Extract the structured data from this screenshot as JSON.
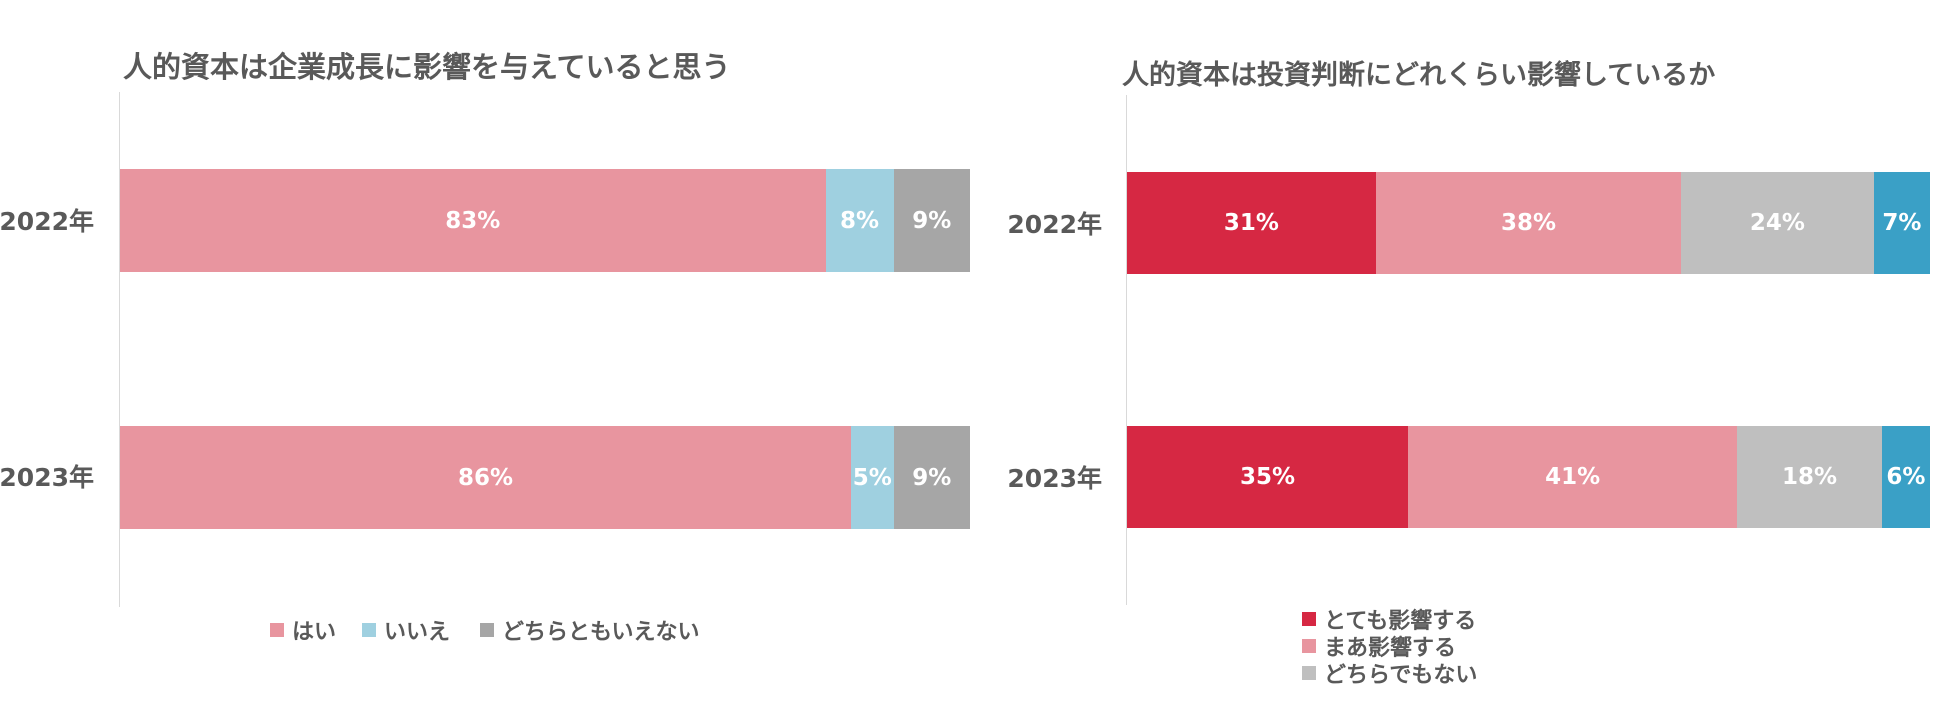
{
  "chart_data": [
    {
      "type": "bar",
      "orientation": "horizontal",
      "stacked": true,
      "percent": true,
      "title": "人的資本は企業成長に影響を与えていると思う",
      "categories": [
        "2022年",
        "2023年"
      ],
      "series": [
        {
          "name": "はい",
          "color": "#e8959f",
          "values": [
            83,
            86
          ],
          "labels": [
            "83%",
            "86%"
          ]
        },
        {
          "name": "いいえ",
          "color": "#9fd0e0",
          "values": [
            8,
            5
          ],
          "labels": [
            "8%",
            "5%"
          ]
        },
        {
          "name": "どちらともいえない",
          "color": "#a6a6a6",
          "values": [
            9,
            9
          ],
          "labels": [
            "9%",
            "9%"
          ]
        }
      ],
      "xlim": [
        0,
        100
      ],
      "legend_position": "bottom"
    },
    {
      "type": "bar",
      "orientation": "horizontal",
      "stacked": true,
      "percent": true,
      "title": "人的資本は投資判断にどれくらい影響しているか",
      "categories": [
        "2022年",
        "2023年"
      ],
      "series": [
        {
          "name": "とても影響する",
          "color": "#d62843",
          "values": [
            31,
            35
          ],
          "labels": [
            "31%",
            "35%"
          ]
        },
        {
          "name": "まあ影響する",
          "color": "#e8959f",
          "values": [
            38,
            41
          ],
          "labels": [
            "38%",
            "41%"
          ]
        },
        {
          "name": "どちらでもない",
          "color": "#bfbfbf",
          "values": [
            24,
            18
          ],
          "labels": [
            "24%",
            "18%"
          ]
        },
        {
          "name": "",
          "color": "#3aa0c6",
          "values": [
            7,
            6
          ],
          "labels": [
            "7%",
            "6%"
          ]
        }
      ],
      "xlim": [
        0,
        100
      ],
      "legend_position": "bottom"
    }
  ]
}
